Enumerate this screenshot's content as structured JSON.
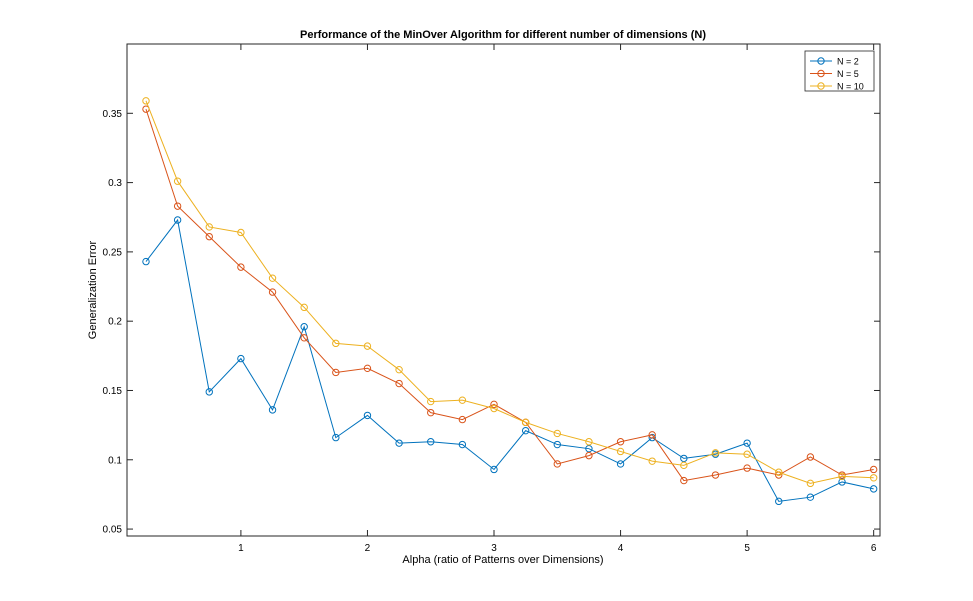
{
  "chart_data": {
    "type": "line",
    "title": "Performance of the MinOver Algorithm for different number of dimensions (N)",
    "xlabel": "Alpha (ratio of Patterns over Dimensions)",
    "ylabel": "Generalization Error",
    "xlim": [
      0.1,
      6.05
    ],
    "ylim": [
      0.045,
      0.4
    ],
    "xticks": [
      1,
      2,
      3,
      4,
      5,
      6
    ],
    "yticks": [
      0.05,
      0.1,
      0.15,
      0.2,
      0.25,
      0.3,
      0.35
    ],
    "xtick_labels": [
      "1",
      "2",
      "3",
      "4",
      "5",
      "6"
    ],
    "ytick_labels": [
      "0.05",
      "0.1",
      "0.15",
      "0.2",
      "0.25",
      "0.3",
      "0.35"
    ],
    "legend_position": "top-right",
    "grid": false,
    "x": [
      0.25,
      0.5,
      0.75,
      1.0,
      1.25,
      1.5,
      1.75,
      2.0,
      2.25,
      2.5,
      2.75,
      3.0,
      3.25,
      3.5,
      3.75,
      4.0,
      4.25,
      4.5,
      4.75,
      5.0,
      5.25,
      5.5,
      5.75,
      6.0
    ],
    "series": [
      {
        "name": "N = 2",
        "color": "#0072BD",
        "values": [
          0.243,
          0.273,
          0.149,
          0.173,
          0.136,
          0.196,
          0.116,
          0.132,
          0.112,
          0.113,
          0.111,
          0.093,
          0.121,
          0.111,
          0.108,
          0.097,
          0.116,
          0.101,
          0.104,
          0.112,
          0.07,
          0.073,
          0.084,
          0.079
        ]
      },
      {
        "name": "N = 5",
        "color": "#D95319",
        "values": [
          0.353,
          0.283,
          0.261,
          0.239,
          0.221,
          0.188,
          0.163,
          0.166,
          0.155,
          0.134,
          0.129,
          0.14,
          0.127,
          0.097,
          0.103,
          0.113,
          0.118,
          0.085,
          0.089,
          0.094,
          0.089,
          0.102,
          0.089,
          0.093
        ]
      },
      {
        "name": "N = 10",
        "color": "#EDB120",
        "values": [
          0.359,
          0.301,
          0.268,
          0.264,
          0.231,
          0.21,
          0.184,
          0.182,
          0.165,
          0.142,
          0.143,
          0.137,
          0.127,
          0.119,
          0.113,
          0.106,
          0.099,
          0.096,
          0.105,
          0.104,
          0.091,
          0.083,
          0.088,
          0.087
        ]
      }
    ]
  }
}
